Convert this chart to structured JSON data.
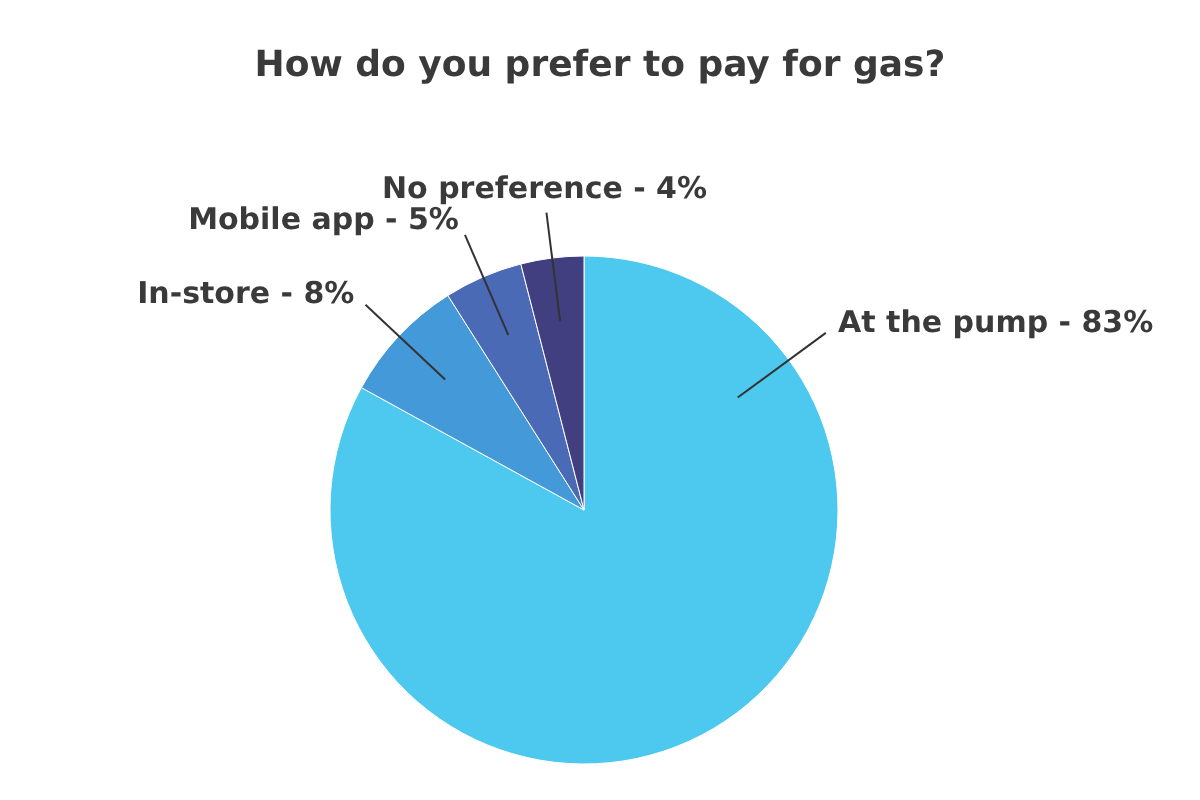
{
  "chart_data": {
    "type": "pie",
    "title": "How do you prefer to pay for gas?",
    "categories": [
      "At the pump",
      "In-store",
      "Mobile app",
      "No preference"
    ],
    "values": [
      83,
      8,
      5,
      4
    ],
    "value_labels": [
      "83%",
      "8%",
      "5%",
      "4%"
    ],
    "colors": [
      "#4dc8ef",
      "#4499d8",
      "#4a6ab5",
      "#423f80"
    ],
    "legend": false
  }
}
